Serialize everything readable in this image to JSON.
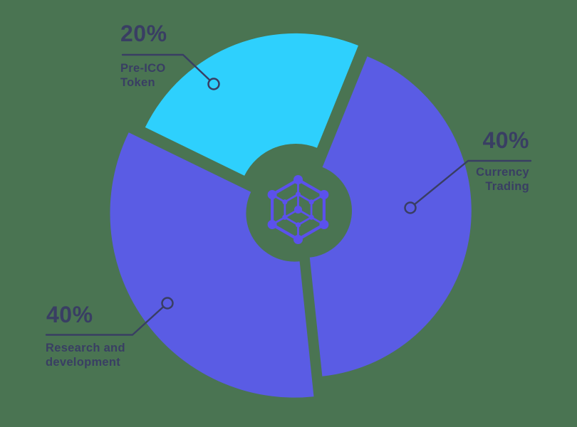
{
  "colors": {
    "background": "#4a7452",
    "cyan": "#2ed0fd",
    "purple": "#5a5ce4",
    "icon_purple": "#5b51ec",
    "text_dark": "#393e63"
  },
  "chart_data": {
    "type": "pie",
    "donut": true,
    "title": "",
    "legend_position": "callouts",
    "center_icon": "blockchain-cube-hexagon-icon",
    "slices": [
      {
        "id": "pre_ico",
        "label": "Pre-ICO Token",
        "value_pct": 20,
        "color": "#2ed0fd"
      },
      {
        "id": "research",
        "label": "Research and development",
        "value_pct": 40,
        "color": "#5a5ce4"
      },
      {
        "id": "currency",
        "label": "Currency Trading",
        "value_pct": 40,
        "color": "#5a5ce4"
      }
    ]
  },
  "callouts": [
    {
      "percent": "20%",
      "line1": "Pre-ICO",
      "line2": "Token"
    },
    {
      "percent": "40%",
      "line1": "Currency",
      "line2": "Trading"
    },
    {
      "percent": "40%",
      "line1": "Research and",
      "line2": "development"
    }
  ]
}
